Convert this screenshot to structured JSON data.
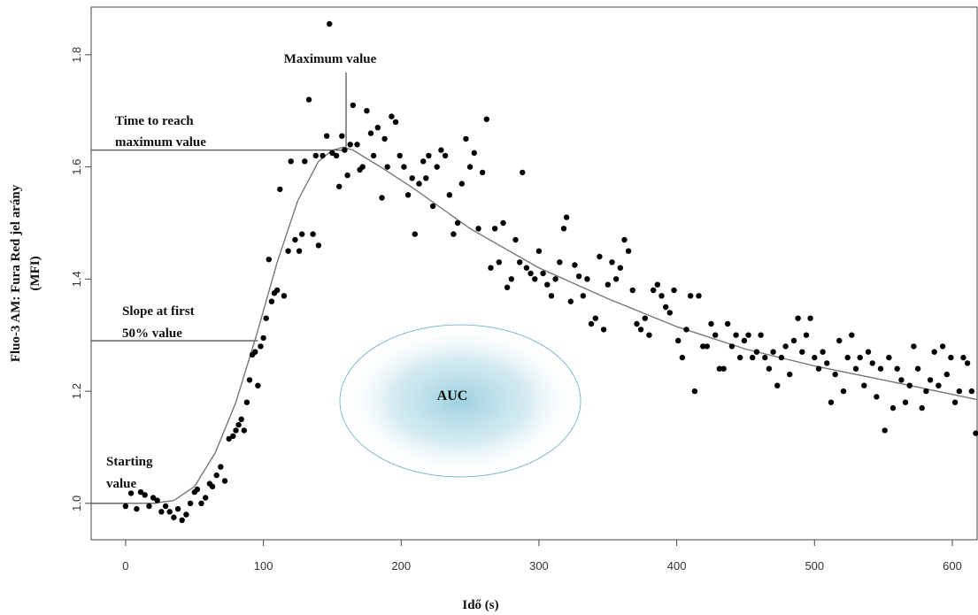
{
  "chart_data": {
    "type": "scatter",
    "xlabel": "Idő (s)",
    "ylabel_line1": "Fluo-3 AM: Fura Red jel arány",
    "ylabel_line2": "(MFI)",
    "xlim": [
      -25,
      618
    ],
    "ylim": [
      0.935,
      1.885
    ],
    "xticks": [
      0,
      100,
      200,
      300,
      400,
      500,
      600
    ],
    "yticks": [
      1.0,
      1.2,
      1.4,
      1.6,
      1.8
    ],
    "ytick_labels": [
      "1.0",
      "1.2",
      "1.4",
      "1.6",
      "1.8"
    ],
    "fit_curve": {
      "x": [
        -2,
        20,
        35,
        50,
        65,
        80,
        95,
        110,
        125,
        140,
        150,
        158,
        165,
        185,
        210,
        250,
        300,
        350,
        400,
        450,
        500,
        550,
        618
      ],
      "y": [
        1.0,
        1.0,
        1.005,
        1.03,
        1.09,
        1.18,
        1.3,
        1.43,
        1.54,
        1.61,
        1.63,
        1.635,
        1.63,
        1.6,
        1.56,
        1.49,
        1.42,
        1.365,
        1.315,
        1.275,
        1.245,
        1.22,
        1.185
      ]
    },
    "points": [
      [
        0,
        0.995
      ],
      [
        4,
        1.018
      ],
      [
        8,
        0.99
      ],
      [
        11,
        1.02
      ],
      [
        14,
        1.015
      ],
      [
        17,
        0.995
      ],
      [
        20,
        1.01
      ],
      [
        23,
        1.005
      ],
      [
        26,
        0.985
      ],
      [
        29,
        0.995
      ],
      [
        32,
        0.985
      ],
      [
        35,
        0.975
      ],
      [
        38,
        0.99
      ],
      [
        41,
        0.97
      ],
      [
        44,
        0.98
      ],
      [
        47,
        1.0
      ],
      [
        50,
        1.02
      ],
      [
        52,
        1.025
      ],
      [
        55,
        1.0
      ],
      [
        58,
        1.01
      ],
      [
        61,
        1.035
      ],
      [
        63,
        1.03
      ],
      [
        66,
        1.05
      ],
      [
        69,
        1.065
      ],
      [
        72,
        1.04
      ],
      [
        75,
        1.115
      ],
      [
        78,
        1.12
      ],
      [
        80,
        1.13
      ],
      [
        82,
        1.14
      ],
      [
        84,
        1.15
      ],
      [
        86,
        1.13
      ],
      [
        88,
        1.18
      ],
      [
        90,
        1.22
      ],
      [
        92,
        1.265
      ],
      [
        94,
        1.27
      ],
      [
        96,
        1.21
      ],
      [
        98,
        1.28
      ],
      [
        100,
        1.295
      ],
      [
        102,
        1.33
      ],
      [
        104,
        1.435
      ],
      [
        106,
        1.36
      ],
      [
        108,
        1.375
      ],
      [
        110,
        1.38
      ],
      [
        112,
        1.56
      ],
      [
        115,
        1.37
      ],
      [
        118,
        1.45
      ],
      [
        120,
        1.61
      ],
      [
        123,
        1.47
      ],
      [
        126,
        1.45
      ],
      [
        128,
        1.48
      ],
      [
        130,
        1.61
      ],
      [
        133,
        1.72
      ],
      [
        136,
        1.48
      ],
      [
        138,
        1.62
      ],
      [
        140,
        1.46
      ],
      [
        143,
        1.62
      ],
      [
        146,
        1.655
      ],
      [
        148,
        1.855
      ],
      [
        150,
        1.625
      ],
      [
        153,
        1.62
      ],
      [
        155,
        1.565
      ],
      [
        157,
        1.655
      ],
      [
        159,
        1.63
      ],
      [
        161,
        1.585
      ],
      [
        163,
        1.64
      ],
      [
        165,
        1.71
      ],
      [
        168,
        1.64
      ],
      [
        170,
        1.595
      ],
      [
        172,
        1.6
      ],
      [
        175,
        1.7
      ],
      [
        178,
        1.66
      ],
      [
        180,
        1.62
      ],
      [
        183,
        1.67
      ],
      [
        186,
        1.545
      ],
      [
        188,
        1.65
      ],
      [
        190,
        1.6
      ],
      [
        193,
        1.69
      ],
      [
        196,
        1.68
      ],
      [
        199,
        1.62
      ],
      [
        202,
        1.6
      ],
      [
        205,
        1.55
      ],
      [
        208,
        1.58
      ],
      [
        210,
        1.48
      ],
      [
        213,
        1.57
      ],
      [
        216,
        1.61
      ],
      [
        218,
        1.58
      ],
      [
        220,
        1.62
      ],
      [
        223,
        1.53
      ],
      [
        226,
        1.6
      ],
      [
        229,
        1.63
      ],
      [
        232,
        1.62
      ],
      [
        235,
        1.55
      ],
      [
        238,
        1.48
      ],
      [
        241,
        1.5
      ],
      [
        244,
        1.57
      ],
      [
        247,
        1.65
      ],
      [
        250,
        1.6
      ],
      [
        253,
        1.625
      ],
      [
        256,
        1.49
      ],
      [
        259,
        1.59
      ],
      [
        262,
        1.685
      ],
      [
        265,
        1.42
      ],
      [
        268,
        1.49
      ],
      [
        271,
        1.43
      ],
      [
        274,
        1.5
      ],
      [
        277,
        1.385
      ],
      [
        280,
        1.4
      ],
      [
        283,
        1.47
      ],
      [
        286,
        1.43
      ],
      [
        288,
        1.59
      ],
      [
        291,
        1.42
      ],
      [
        294,
        1.41
      ],
      [
        297,
        1.4
      ],
      [
        300,
        1.45
      ],
      [
        303,
        1.41
      ],
      [
        306,
        1.39
      ],
      [
        309,
        1.37
      ],
      [
        312,
        1.4
      ],
      [
        315,
        1.43
      ],
      [
        318,
        1.49
      ],
      [
        320,
        1.51
      ],
      [
        323,
        1.36
      ],
      [
        326,
        1.425
      ],
      [
        329,
        1.405
      ],
      [
        332,
        1.37
      ],
      [
        335,
        1.4
      ],
      [
        338,
        1.32
      ],
      [
        341,
        1.33
      ],
      [
        344,
        1.44
      ],
      [
        347,
        1.31
      ],
      [
        350,
        1.39
      ],
      [
        353,
        1.43
      ],
      [
        356,
        1.4
      ],
      [
        359,
        1.42
      ],
      [
        362,
        1.47
      ],
      [
        365,
        1.45
      ],
      [
        368,
        1.38
      ],
      [
        371,
        1.32
      ],
      [
        374,
        1.31
      ],
      [
        377,
        1.33
      ],
      [
        380,
        1.3
      ],
      [
        383,
        1.38
      ],
      [
        386,
        1.39
      ],
      [
        389,
        1.37
      ],
      [
        392,
        1.35
      ],
      [
        395,
        1.34
      ],
      [
        398,
        1.38
      ],
      [
        401,
        1.29
      ],
      [
        404,
        1.26
      ],
      [
        407,
        1.31
      ],
      [
        410,
        1.37
      ],
      [
        413,
        1.2
      ],
      [
        416,
        1.37
      ],
      [
        419,
        1.28
      ],
      [
        422,
        1.28
      ],
      [
        425,
        1.32
      ],
      [
        428,
        1.3
      ],
      [
        431,
        1.24
      ],
      [
        434,
        1.24
      ],
      [
        437,
        1.32
      ],
      [
        440,
        1.28
      ],
      [
        443,
        1.3
      ],
      [
        446,
        1.26
      ],
      [
        449,
        1.29
      ],
      [
        452,
        1.3
      ],
      [
        455,
        1.26
      ],
      [
        458,
        1.27
      ],
      [
        461,
        1.3
      ],
      [
        464,
        1.26
      ],
      [
        467,
        1.24
      ],
      [
        470,
        1.27
      ],
      [
        473,
        1.21
      ],
      [
        476,
        1.26
      ],
      [
        479,
        1.28
      ],
      [
        482,
        1.23
      ],
      [
        485,
        1.29
      ],
      [
        488,
        1.33
      ],
      [
        491,
        1.27
      ],
      [
        494,
        1.3
      ],
      [
        497,
        1.33
      ],
      [
        500,
        1.26
      ],
      [
        503,
        1.24
      ],
      [
        506,
        1.27
      ],
      [
        509,
        1.25
      ],
      [
        512,
        1.18
      ],
      [
        515,
        1.23
      ],
      [
        518,
        1.29
      ],
      [
        521,
        1.2
      ],
      [
        524,
        1.26
      ],
      [
        527,
        1.3
      ],
      [
        530,
        1.24
      ],
      [
        533,
        1.26
      ],
      [
        536,
        1.21
      ],
      [
        539,
        1.27
      ],
      [
        542,
        1.25
      ],
      [
        545,
        1.19
      ],
      [
        548,
        1.24
      ],
      [
        551,
        1.13
      ],
      [
        554,
        1.26
      ],
      [
        557,
        1.17
      ],
      [
        560,
        1.24
      ],
      [
        563,
        1.22
      ],
      [
        566,
        1.18
      ],
      [
        569,
        1.21
      ],
      [
        572,
        1.28
      ],
      [
        575,
        1.24
      ],
      [
        578,
        1.17
      ],
      [
        581,
        1.2
      ],
      [
        584,
        1.22
      ],
      [
        587,
        1.27
      ],
      [
        590,
        1.21
      ],
      [
        593,
        1.28
      ],
      [
        596,
        1.23
      ],
      [
        599,
        1.26
      ],
      [
        602,
        1.18
      ],
      [
        605,
        1.2
      ],
      [
        608,
        1.26
      ],
      [
        611,
        1.25
      ],
      [
        614,
        1.2
      ],
      [
        617,
        1.125
      ]
    ],
    "annotations": {
      "maximum": {
        "label": "Maximum value",
        "x": 160,
        "y": 1.635
      },
      "time_to_max": {
        "line1": "Time to reach",
        "line2": "maximum value",
        "y": 1.63
      },
      "slope": {
        "line1": "Slope at first",
        "line2": "50% value",
        "y": 1.29
      },
      "starting": {
        "line1": "Starting",
        "line2": "value",
        "y": 1.0
      },
      "auc": {
        "label": "AUC"
      }
    },
    "colors": {
      "points": "#000000",
      "curve": "#777777",
      "guides": "#555555",
      "auc_fill": "#9ed1e0",
      "auc_stroke": "#7fb8c8"
    }
  }
}
